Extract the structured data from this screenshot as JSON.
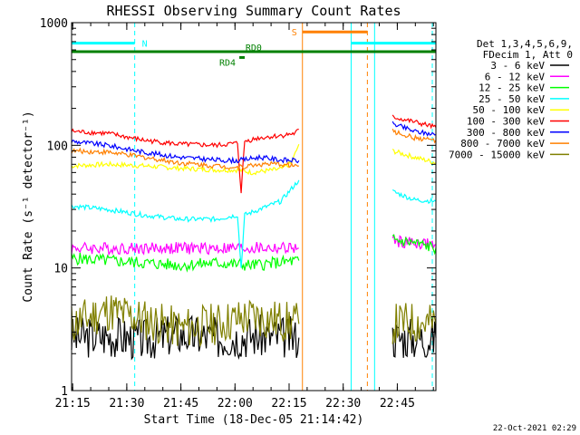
{
  "chart_data": {
    "type": "line",
    "title": "RHESSI Observing Summary Count Rates",
    "xlabel": "Start Time (18-Dec-05 21:14:42)",
    "ylabel": "Count Rate (s⁻¹ detector⁻¹)",
    "x_unit": "minutes since 21:14:42",
    "xlim": [
      0,
      101
    ],
    "ylim": [
      1,
      1000
    ],
    "y_scale": "log",
    "x_ticks": [
      {
        "label": "21:15",
        "value": 0.3
      },
      {
        "label": "21:30",
        "value": 15.3
      },
      {
        "label": "21:45",
        "value": 30.3
      },
      {
        "label": "22:00",
        "value": 45.3
      },
      {
        "label": "22:15",
        "value": 60.3
      },
      {
        "label": "22:30",
        "value": 75.3
      },
      {
        "label": "22:45",
        "value": 90.3
      }
    ],
    "y_ticks": [
      {
        "label": "1",
        "value": 1
      },
      {
        "label": "10",
        "value": 10
      },
      {
        "label": "100",
        "value": 100
      },
      {
        "label": "1000",
        "value": 1000
      }
    ],
    "legend_header": [
      "Det 1,3,4,5,6,9,",
      "FDecim 1, Att 0"
    ],
    "legend_position": "right",
    "series": [
      {
        "name": "3 - 6 keV",
        "color": "#000000",
        "x": [
          0,
          10,
          20,
          30,
          40,
          50,
          63,
          84,
          89,
          95,
          101
        ],
        "y": [
          2.7,
          2.8,
          2.6,
          2.9,
          2.7,
          2.8,
          2.7,
          null,
          2.7,
          2.7,
          2.7
        ]
      },
      {
        "name": "6 - 12 keV",
        "color": "#ff00ff",
        "x": [
          0,
          10,
          20,
          30,
          40,
          50,
          63,
          84,
          89,
          95,
          101
        ],
        "y": [
          14.5,
          14.5,
          14.5,
          14.5,
          14.5,
          14.5,
          14.5,
          null,
          16.5,
          16,
          15.5
        ]
      },
      {
        "name": "12 - 25 keV",
        "color": "#00ff00",
        "x": [
          0,
          10,
          20,
          30,
          40,
          50,
          63,
          84,
          89,
          95,
          101
        ],
        "y": [
          12,
          11.5,
          11,
          10.5,
          11,
          10.5,
          11.5,
          null,
          17,
          16,
          14.5
        ]
      },
      {
        "name": "25 - 50 keV",
        "color": "#00ffff",
        "x": [
          0,
          10,
          20,
          30,
          40,
          46,
          47,
          48,
          52,
          58,
          63,
          84,
          89,
          95,
          101
        ],
        "y": [
          32,
          30,
          27,
          25,
          25,
          27,
          10,
          27,
          30,
          35,
          52,
          null,
          42,
          36,
          35
        ]
      },
      {
        "name": "50 - 100 keV",
        "color": "#ffff00",
        "x": [
          0,
          10,
          20,
          30,
          40,
          46,
          50,
          58,
          61,
          63,
          84,
          89,
          95,
          101
        ],
        "y": [
          68,
          70,
          68,
          65,
          63,
          63,
          60,
          64,
          72,
          102,
          null,
          90,
          80,
          72
        ]
      },
      {
        "name": "100 - 300 keV",
        "color": "#ff0000",
        "x": [
          0,
          10,
          20,
          30,
          40,
          46,
          47,
          48,
          52,
          58,
          62,
          63,
          84,
          89,
          95,
          101
        ],
        "y": [
          130,
          125,
          110,
          102,
          100,
          104,
          42,
          108,
          115,
          120,
          125,
          135,
          null,
          170,
          155,
          140
        ]
      },
      {
        "name": "300 - 800 keV",
        "color": "#0000ff",
        "x": [
          0,
          10,
          20,
          30,
          40,
          46,
          52,
          58,
          63,
          84,
          89,
          95,
          101
        ],
        "y": [
          108,
          100,
          88,
          80,
          76,
          75,
          80,
          76,
          75,
          null,
          150,
          130,
          122
        ]
      },
      {
        "name": "800 - 7000 keV",
        "color": "#ff8000",
        "x": [
          0,
          10,
          20,
          30,
          40,
          46,
          52,
          58,
          63,
          84,
          89,
          95,
          101
        ],
        "y": [
          90,
          88,
          80,
          72,
          68,
          66,
          70,
          70,
          68,
          null,
          130,
          115,
          110
        ]
      },
      {
        "name": "7000 - 15000 keV",
        "color": "#808000",
        "x": [
          0,
          10,
          20,
          30,
          40,
          50,
          63,
          84,
          89,
          95,
          101
        ],
        "y": [
          3.5,
          4.5,
          3.8,
          3.2,
          3.5,
          4.0,
          3.5,
          null,
          3.5,
          3.6,
          3.5
        ]
      }
    ],
    "vertical_lines": [
      {
        "x": 0,
        "color": "#00ffff",
        "style": "solid"
      },
      {
        "x": 17.5,
        "color": "#00ffff",
        "style": "dashed"
      },
      {
        "x": 64,
        "color": "#ff8000",
        "style": "solid"
      },
      {
        "x": 77.5,
        "color": "#00ffff",
        "style": "solid"
      },
      {
        "x": 82,
        "color": "#ff8000",
        "style": "dashed"
      },
      {
        "x": 84,
        "color": "#00ffff",
        "style": "solid"
      },
      {
        "x": 100,
        "color": "#00ffff",
        "style": "dashed"
      }
    ],
    "flag_bars": [
      {
        "label": "N",
        "color": "#00ffff",
        "x0": 0,
        "x1": 17.5,
        "y": 680
      },
      {
        "label": "",
        "color": "#00ffff",
        "x0": 77.5,
        "x1": 101,
        "y": 680
      },
      {
        "label": "S",
        "color": "#ff8000",
        "x0": 64,
        "x1": 82,
        "y": 840
      },
      {
        "label": "RD0",
        "color": "#008000",
        "x0": 0,
        "x1": 101,
        "y": 580
      },
      {
        "label": "RD4",
        "color": "#008000",
        "x0": 46.5,
        "x1": 48,
        "y": 520
      }
    ],
    "grid": false
  },
  "footer": {
    "timestamp": "22-Oct-2021 02:29"
  }
}
